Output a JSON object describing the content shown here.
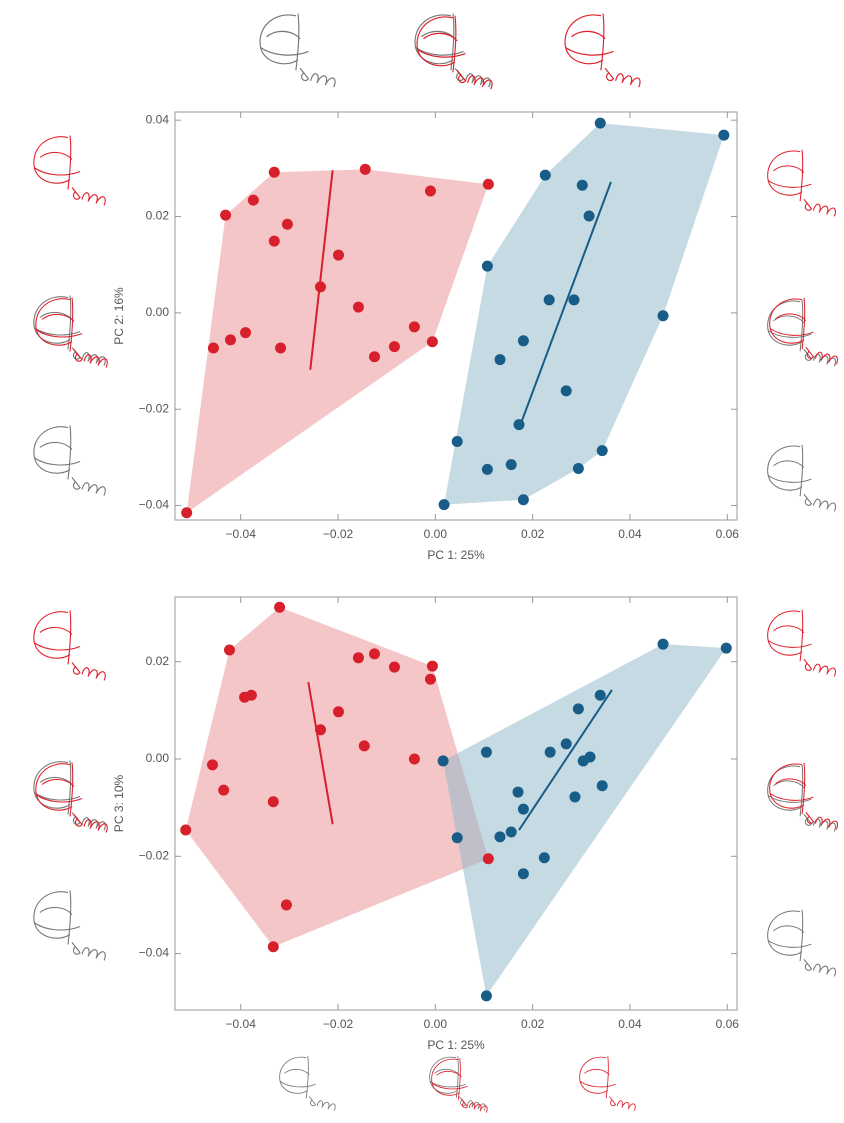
{
  "chart_data": [
    {
      "type": "scatter",
      "x_label": "PC 1: 25%",
      "y_label": "PC 2: 16%",
      "xlim": [
        -0.0535,
        0.062
      ],
      "ylim": [
        -0.043,
        0.0417
      ],
      "xticks": [
        {
          "value": -0.04,
          "label": "−0.04"
        },
        {
          "value": -0.02,
          "label": "−0.02"
        },
        {
          "value": 0,
          "label": "0.00"
        },
        0.02,
        0.04,
        0.06
      ],
      "yticks": [
        {
          "value": -0.04,
          "label": "−0.04"
        },
        {
          "value": -0.02,
          "label": "−0.02"
        },
        {
          "value": 0,
          "label": "0.00"
        },
        0.02,
        0.04
      ],
      "hull": true,
      "series": [
        {
          "color": "#d7202c",
          "hull_color": "#e98d92",
          "x": [
            -0.0511,
            -0.0456,
            -0.0421,
            -0.039,
            -0.0431,
            -0.0374,
            -0.0331,
            -0.0331,
            -0.0304,
            -0.0318,
            -0.0236,
            -0.0199,
            -0.0144,
            -0.0158,
            -0.0125,
            -0.0084,
            -0.0043,
            -0.001,
            -0.0006,
            0.0109
          ],
          "y": [
            -0.0415,
            -0.0073,
            -0.0056,
            -0.0041,
            0.0203,
            0.0234,
            0.0292,
            0.0149,
            0.0184,
            -0.0073,
            0.0054,
            0.012,
            0.0298,
            0.0012,
            -0.0091,
            -0.007,
            -0.0029,
            0.0253,
            -0.006,
            0.0267
          ],
          "line": {
            "x": [
              -0.0257,
              -0.0211
            ],
            "y": [
              -0.0118,
              0.0296
            ]
          }
        },
        {
          "color": "#175d87",
          "hull_color": "#8cb6c8",
          "x": [
            0.0018,
            0.0045,
            0.0107,
            0.0107,
            0.0133,
            0.0156,
            0.0172,
            0.0181,
            0.0181,
            0.0226,
            0.0234,
            0.0269,
            0.0285,
            0.0302,
            0.0316,
            0.0294,
            0.0339,
            0.0343,
            0.0468,
            0.0593
          ],
          "y": [
            -0.0398,
            -0.0267,
            -0.0325,
            0.0097,
            -0.0097,
            -0.0315,
            -0.0232,
            -0.0058,
            -0.0388,
            0.0286,
            0.0027,
            -0.0162,
            0.0027,
            0.0265,
            0.0201,
            -0.0323,
            0.0394,
            -0.0286,
            -0.0006,
            0.0369
          ],
          "line": {
            "x": [
              0.0175,
              0.0361
            ],
            "y": [
              -0.0232,
              0.0272
            ]
          }
        }
      ]
    },
    {
      "type": "scatter",
      "x_label": "PC 1: 25%",
      "y_label": "PC 3: 10%",
      "xlim": [
        -0.0535,
        0.062
      ],
      "ylim": [
        -0.0516,
        0.0333
      ],
      "xticks": [
        {
          "value": -0.04,
          "label": "−0.04"
        },
        {
          "value": -0.02,
          "label": "−0.02"
        },
        {
          "value": 0,
          "label": "0.00"
        },
        0.02,
        0.04,
        0.06
      ],
      "yticks": [
        {
          "value": -0.04,
          "label": "−0.04"
        },
        {
          "value": -0.02,
          "label": "−0.02"
        },
        {
          "value": 0,
          "label": "0.00"
        },
        0.02
      ],
      "hull": true,
      "series": [
        {
          "color": "#d7202c",
          "hull_color": "#e98d92",
          "x": [
            -0.0513,
            -0.0458,
            -0.0435,
            -0.0423,
            -0.0392,
            -0.0378,
            -0.0333,
            -0.0333,
            -0.032,
            -0.0306,
            -0.0236,
            -0.0199,
            -0.0158,
            -0.0146,
            -0.0125,
            -0.0084,
            -0.0043,
            -0.001,
            -0.0006,
            0.0109
          ],
          "y": [
            -0.0146,
            -0.0012,
            -0.0064,
            0.0224,
            0.0127,
            0.0131,
            -0.0088,
            -0.0386,
            0.0312,
            -0.03,
            0.006,
            0.0097,
            0.0208,
            0.0027,
            0.0216,
            0.0189,
            0.0,
            0.0164,
            0.0191,
            -0.0205
          ],
          "line": {
            "x": [
              -0.0261,
              -0.0211
            ],
            "y": [
              0.0158,
              -0.0134
            ]
          }
        },
        {
          "color": "#175d87",
          "hull_color": "#8cb6c8",
          "x": [
            0.0016,
            0.0045,
            0.0105,
            0.0105,
            0.0133,
            0.0156,
            0.017,
            0.0181,
            0.0181,
            0.0224,
            0.0236,
            0.0269,
            0.0287,
            0.0294,
            0.0304,
            0.0318,
            0.0339,
            0.0343,
            0.0468,
            0.0598
          ],
          "y": [
            -0.0004,
            -0.0162,
            0.0014,
            -0.0487,
            -0.016,
            -0.015,
            -0.0068,
            -0.0103,
            -0.0236,
            -0.0203,
            0.0014,
            0.0031,
            -0.0078,
            0.0103,
            -0.0004,
            0.0004,
            0.0131,
            -0.0055,
            0.0236,
            0.0228
          ],
          "line": {
            "x": [
              0.0172,
              0.0363
            ],
            "y": [
              -0.0146,
              0.0142
            ]
          }
        }
      ]
    }
  ]
}
